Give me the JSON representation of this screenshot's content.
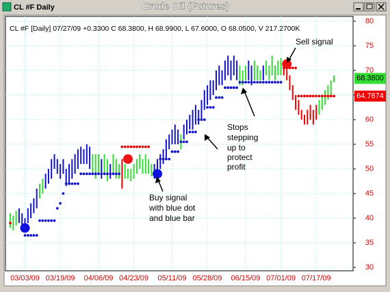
{
  "window_title": "CL #F Daily",
  "chart_data": {
    "type": "ohlc",
    "title": "Crude Oil (Futures)",
    "header": "CL #F [Daily] 07/27/09 +0.3300 C 68.3800, H 68.9900, L 67.6000, O 68.0500, V 217.2700K",
    "categories": [
      null,
      null,
      null,
      null,
      null,
      "03/03/09",
      null,
      null,
      null,
      null,
      null,
      null,
      null,
      null,
      null,
      null,
      null,
      "03/19/09",
      null,
      null,
      null,
      null,
      null,
      null,
      null,
      null,
      null,
      null,
      null,
      null,
      "04/06/09",
      null,
      null,
      null,
      null,
      null,
      null,
      null,
      null,
      null,
      null,
      null,
      "04/23/09",
      null,
      null,
      null,
      null,
      null,
      null,
      null,
      null,
      null,
      null,
      null,
      null,
      "05/11/09",
      null,
      null,
      null,
      null,
      null,
      null,
      null,
      null,
      null,
      null,
      null,
      "05/28/09",
      null,
      null,
      null,
      null,
      null,
      null,
      null,
      null,
      null,
      null,
      null,
      null,
      "06/15/09",
      null,
      null,
      null,
      null,
      null,
      null,
      null,
      null,
      null,
      null,
      null,
      "07/01/09",
      null,
      null,
      null,
      null,
      null,
      null,
      null,
      null,
      null,
      null,
      null,
      "07/17/09",
      null,
      null,
      null,
      null,
      null,
      null
    ],
    "high": [
      41,
      40.5,
      41.5,
      42,
      41,
      40,
      42,
      43,
      44,
      46,
      47,
      48,
      49,
      50,
      52,
      53,
      52,
      51,
      52,
      50,
      51,
      52,
      53,
      54,
      54.5,
      54,
      55,
      54.5,
      53,
      53,
      53,
      52,
      53,
      52,
      51,
      53,
      52,
      51,
      52,
      51,
      50,
      50,
      51,
      52,
      53,
      52,
      53,
      52,
      51,
      51,
      52,
      53,
      54,
      56,
      57,
      58,
      59,
      58,
      57,
      59,
      60,
      61,
      62,
      63,
      62,
      64,
      66,
      67,
      68,
      68,
      70,
      71,
      70,
      72,
      73,
      72,
      73,
      72,
      71,
      70,
      71,
      72,
      71,
      72,
      71,
      70,
      71,
      72,
      71,
      73,
      71,
      72,
      72.5,
      71.5,
      71,
      69,
      67,
      65,
      64,
      62,
      61,
      62,
      63,
      62,
      63,
      64,
      65,
      66,
      67,
      68,
      69
    ],
    "low": [
      38,
      37.5,
      38.5,
      39,
      38,
      37.5,
      39,
      40,
      41,
      42,
      44,
      45,
      46,
      47,
      48,
      50,
      49,
      48,
      49,
      46.5,
      47,
      48,
      49,
      50,
      51,
      51,
      51,
      50,
      49,
      48,
      49,
      48,
      49,
      47.5,
      48,
      49,
      48,
      48,
      46,
      48,
      48,
      47.5,
      48,
      49,
      50,
      49,
      49,
      49,
      48.5,
      48,
      49,
      50,
      51,
      52,
      54,
      55,
      55,
      55,
      54,
      56,
      57,
      58,
      58,
      59,
      59,
      60,
      62,
      63,
      64,
      65,
      66,
      67,
      67,
      68,
      69,
      68,
      69,
      68,
      67,
      67,
      68,
      68,
      67,
      68,
      68,
      68,
      68,
      69,
      68,
      69,
      68,
      69,
      69,
      69,
      68,
      66,
      64,
      62,
      61,
      60,
      59,
      59,
      60,
      59,
      60,
      61,
      62,
      63,
      64,
      65,
      67.6
    ],
    "bar_colors": [
      "#3d3",
      "#3d3",
      "#3d3",
      "#11c",
      "#11c",
      "#11c",
      "#11c",
      "#11c",
      "#11c",
      "#11c",
      "#3d3",
      "#3d3",
      "#11c",
      "#11c",
      "#11c",
      "#11c",
      "#11c",
      "#11c",
      "#11c",
      "#11c",
      "#11c",
      "#11c",
      "#11c",
      "#11c",
      "#11c",
      "#11c",
      "#11c",
      "#11c",
      "#3d3",
      "#3d3",
      "#3d3",
      "#11c",
      "#3d3",
      "#3d3",
      "#11c",
      "#3d3",
      "#3d3",
      "#3d3",
      "#e00",
      "#3d3",
      "#3d3",
      "#3d3",
      "#3d3",
      "#3d3",
      "#3d3",
      "#3d3",
      "#3d3",
      "#3d3",
      "#3d3",
      "#11c",
      "#11c",
      "#11c",
      "#11c",
      "#11c",
      "#11c",
      "#11c",
      "#11c",
      "#11c",
      "#3d3",
      "#11c",
      "#11c",
      "#11c",
      "#11c",
      "#11c",
      "#11c",
      "#11c",
      "#11c",
      "#11c",
      "#11c",
      "#11c",
      "#11c",
      "#11c",
      "#11c",
      "#11c",
      "#11c",
      "#11c",
      "#11c",
      "#11c",
      "#3d3",
      "#3d3",
      "#3d3",
      "#11c",
      "#11c",
      "#3d3",
      "#3d3",
      "#3d3",
      "#11c",
      "#3d3",
      "#3d3",
      "#3d3",
      "#3d3",
      "#3d3",
      "#3d3",
      "#e00",
      "#e00",
      "#e00",
      "#e00",
      "#e00",
      "#e00",
      "#e00",
      "#e00",
      "#e00",
      "#e00",
      "#e00",
      "#e00",
      "#3d3",
      "#3d3",
      "#3d3",
      "#3d3",
      "#3d3",
      "#3d3"
    ],
    "buy_stops": [
      null,
      null,
      null,
      null,
      null,
      36.5,
      36.5,
      36.5,
      36.5,
      36.5,
      39.5,
      39.5,
      39.5,
      39.5,
      39.5,
      39.5,
      42,
      43,
      45,
      47,
      47,
      47,
      47,
      47,
      49,
      49,
      49,
      49,
      49,
      49,
      49,
      49,
      49,
      49,
      49,
      49,
      49,
      49,
      null,
      null,
      null,
      null,
      null,
      null,
      null,
      null,
      null,
      null,
      null,
      null,
      null,
      52,
      52,
      52,
      52,
      53.5,
      53.5,
      53.5,
      55.5,
      55.5,
      55.5,
      57.5,
      57.5,
      57.5,
      60,
      60,
      60,
      62.5,
      62.5,
      62.5,
      64.5,
      64.5,
      64.5,
      66.5,
      66.5,
      66.5,
      66.5,
      66.5,
      67.6,
      67.6,
      67.6,
      67.6,
      67.6,
      67.6,
      67.6,
      67.6,
      67.6,
      67.6,
      67.6,
      67.6,
      67.6,
      67.6,
      67.6,
      null,
      null,
      null,
      null,
      null,
      null,
      null,
      null,
      null,
      null,
      null,
      null,
      null,
      null,
      null,
      null,
      null,
      null
    ],
    "buy_stop_color": "#11c",
    "sell_stops": [
      39,
      null,
      null,
      null,
      null,
      null,
      null,
      null,
      null,
      null,
      null,
      null,
      null,
      null,
      null,
      null,
      null,
      null,
      null,
      null,
      null,
      null,
      null,
      null,
      null,
      null,
      null,
      null,
      null,
      null,
      null,
      null,
      null,
      null,
      null,
      null,
      null,
      null,
      54.5,
      54.5,
      54.5,
      54.5,
      54.5,
      54.5,
      54.5,
      54.5,
      54.5,
      54.5,
      null,
      null,
      null,
      null,
      null,
      null,
      null,
      null,
      null,
      null,
      null,
      null,
      null,
      null,
      null,
      null,
      null,
      null,
      null,
      null,
      null,
      null,
      null,
      null,
      null,
      null,
      null,
      null,
      null,
      null,
      null,
      null,
      null,
      null,
      null,
      null,
      null,
      null,
      null,
      null,
      null,
      null,
      null,
      null,
      null,
      70.5,
      70.5,
      70.5,
      70.5,
      70.5,
      64.8,
      64.8,
      64.8,
      64.8,
      64.8,
      64.8,
      64.8,
      64.8,
      64.8,
      64.8,
      64.8,
      64.8,
      64.8
    ],
    "sell_stop_color": "#e00",
    "signals": [
      {
        "index": 5,
        "value": 38,
        "color": "#11d"
      },
      {
        "index": 40,
        "value": 52,
        "color": "#e11"
      },
      {
        "index": 50,
        "value": 49,
        "color": "#11d"
      },
      {
        "index": 94,
        "value": 71.3,
        "color": "#e11"
      }
    ],
    "price_tags": [
      {
        "value": 68.38,
        "label": "68.3800",
        "color": "#3d3",
        "text_color": "#000"
      },
      {
        "value": 64.7874,
        "label": "64.7874",
        "color": "#e00",
        "text_color": "#fff"
      }
    ],
    "ylim": [
      30,
      80
    ],
    "yticks": [
      30,
      35,
      40,
      45,
      50,
      55,
      60,
      65,
      70,
      75,
      80
    ],
    "grid": true,
    "axis_color": "#d00000",
    "annotations": {
      "sell": "Sell signal",
      "stops": [
        "Stops",
        "stepping",
        "up to",
        "protect",
        "profit"
      ],
      "buy": [
        "Buy signal",
        "with blue dot",
        "and blue bar"
      ]
    }
  }
}
